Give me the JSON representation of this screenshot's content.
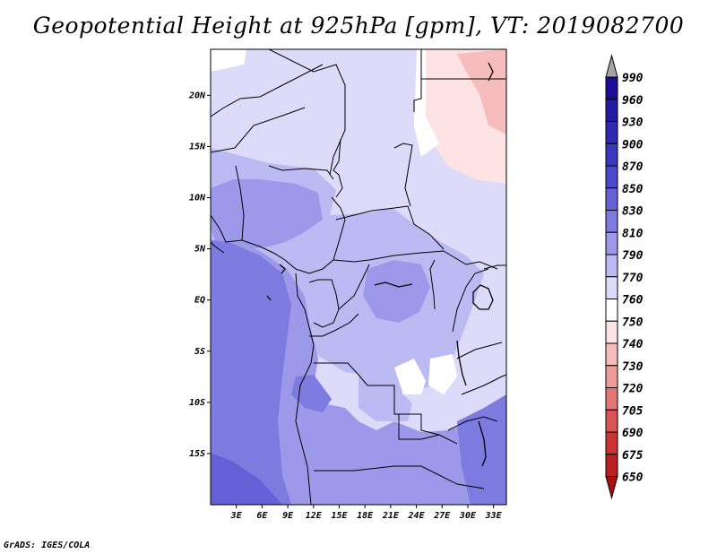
{
  "title": "Geopotential Height at 925hPa [gpm], VT: 2019082700",
  "credit": "GrADS: IGES/COLA",
  "map": {
    "lon_range": [
      0,
      34.5
    ],
    "lat_range": [
      -20,
      24.5
    ],
    "x_ticks": [
      {
        "value": 3,
        "label": "3E"
      },
      {
        "value": 6,
        "label": "6E"
      },
      {
        "value": 9,
        "label": "9E"
      },
      {
        "value": 12,
        "label": "12E"
      },
      {
        "value": 15,
        "label": "15E"
      },
      {
        "value": 18,
        "label": "18E"
      },
      {
        "value": 21,
        "label": "21E"
      },
      {
        "value": 24,
        "label": "24E"
      },
      {
        "value": 27,
        "label": "27E"
      },
      {
        "value": 30,
        "label": "30E"
      },
      {
        "value": 33,
        "label": "33E"
      }
    ],
    "y_ticks": [
      {
        "value": 20,
        "label": "20N"
      },
      {
        "value": 15,
        "label": "15N"
      },
      {
        "value": 10,
        "label": "10N"
      },
      {
        "value": 5,
        "label": "5N"
      },
      {
        "value": 0,
        "label": "EQ"
      },
      {
        "value": -5,
        "label": "5S"
      },
      {
        "value": -10,
        "label": "10S"
      },
      {
        "value": -15,
        "label": "15S"
      }
    ]
  },
  "colorbar": {
    "levels": [
      "990",
      "960",
      "930",
      "900",
      "870",
      "850",
      "830",
      "810",
      "790",
      "770",
      "760",
      "750",
      "740",
      "730",
      "720",
      "705",
      "690",
      "675",
      "650"
    ],
    "colors": [
      "#1a0d99",
      "#241aa6",
      "#2f28b3",
      "#3b37bf",
      "#4c48cc",
      "#6460d6",
      "#7d7ae0",
      "#9c99ea",
      "#bcbaf2",
      "#dcdcfa",
      "#ffffff",
      "#fde3e3",
      "#f6bdbd",
      "#ee9b9b",
      "#e47676",
      "#d95454",
      "#cc3333",
      "#bb2020",
      "#a81010"
    ],
    "top_arrow_color": "#a6a6a6"
  }
}
